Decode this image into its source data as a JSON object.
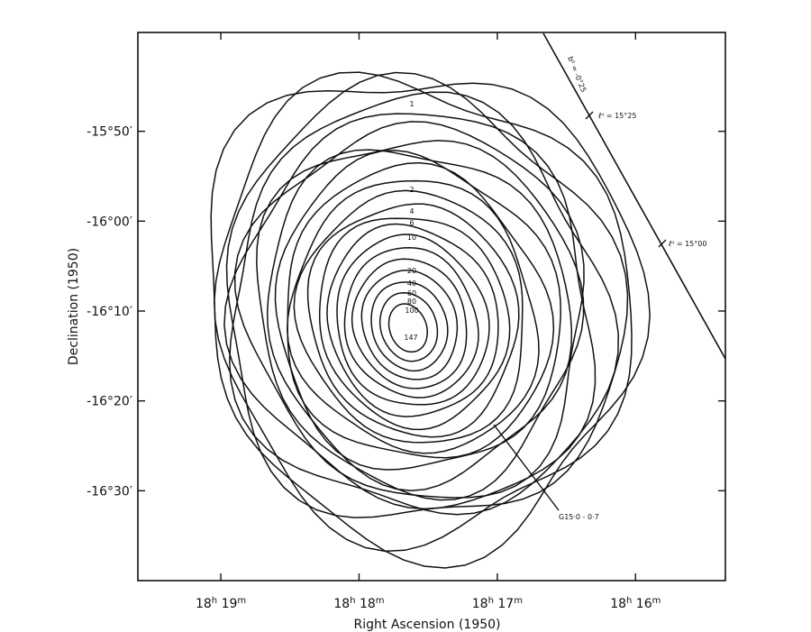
{
  "chart_data": {
    "type": "contour",
    "title": "",
    "xlabel": "Right Ascension (1950)",
    "ylabel": "Declination (1950)",
    "x_ticks": [
      {
        "h": "18",
        "m": "19",
        "value_min": 1099
      },
      {
        "h": "18",
        "m": "18",
        "value_min": 1098
      },
      {
        "h": "18",
        "m": "17",
        "value_min": 1097
      },
      {
        "h": "18",
        "m": "16",
        "value_min": 1096
      }
    ],
    "y_ticks": [
      {
        "label": "-15°50′",
        "value_arcmin": -950
      },
      {
        "label": "-16°00′",
        "value_arcmin": -960
      },
      {
        "label": "-16°10′",
        "value_arcmin": -970
      },
      {
        "label": "-16°20′",
        "value_arcmin": -980
      },
      {
        "label": "-16°30′",
        "value_arcmin": -990
      }
    ],
    "xlim_min": [
      1099.6,
      1095.35
    ],
    "ylim_arcmin": [
      -939,
      -1000
    ],
    "contour_levels": [
      1,
      2,
      4,
      6,
      10,
      20,
      40,
      60,
      80,
      100
    ],
    "contour_labels": [
      "1",
      "2",
      "4",
      "6",
      "10",
      "20",
      "40",
      "60",
      "80",
      "100"
    ],
    "peak_value": 147,
    "peak_label": "147",
    "peak_position": {
      "ra_min": 1097.65,
      "dec_arcmin": -972
    },
    "source_label": "G15·0 - 0·7",
    "galactic_line": {
      "b_label": "bᴵᴵ = -0°25",
      "l_labels": [
        "ℓᴵᴵ = 15°25",
        "ℓᴵᴵ = 15°00"
      ]
    },
    "grid": false,
    "legend": "none"
  }
}
